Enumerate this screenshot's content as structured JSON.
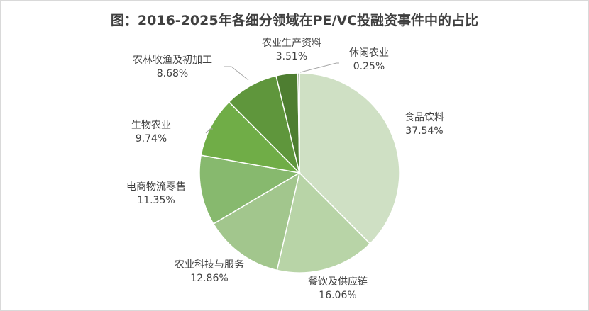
{
  "chart_data": {
    "type": "pie",
    "title": "图：2016-2025年各细分领域在PE/VC投融资事件中的占比",
    "slices": [
      {
        "label": "食品饮料",
        "value": 37.54,
        "value_label": "37.54%",
        "color": "#cfe0c4"
      },
      {
        "label": "餐饮及供应链",
        "value": 16.06,
        "value_label": "16.06%",
        "color": "#b8d4a7"
      },
      {
        "label": "农业科技与服务",
        "value": 12.86,
        "value_label": "12.86%",
        "color": "#a2c68d"
      },
      {
        "label": "电商物流零售",
        "value": 11.35,
        "value_label": "11.35%",
        "color": "#87b96e"
      },
      {
        "label": "生物农业",
        "value": 9.74,
        "value_label": "9.74%",
        "color": "#70ad47"
      },
      {
        "label": "农林牧渔及初加工",
        "value": 8.68,
        "value_label": "8.68%",
        "color": "#5f963c"
      },
      {
        "label": "农业生产资料",
        "value": 3.51,
        "value_label": "3.51%",
        "color": "#4e7e31"
      },
      {
        "label": "休闲农业",
        "value": 0.25,
        "value_label": "0.25%",
        "color": "#426c29"
      }
    ],
    "start_angle": "12 o'clock",
    "direction": "clockwise",
    "legend": "none"
  }
}
